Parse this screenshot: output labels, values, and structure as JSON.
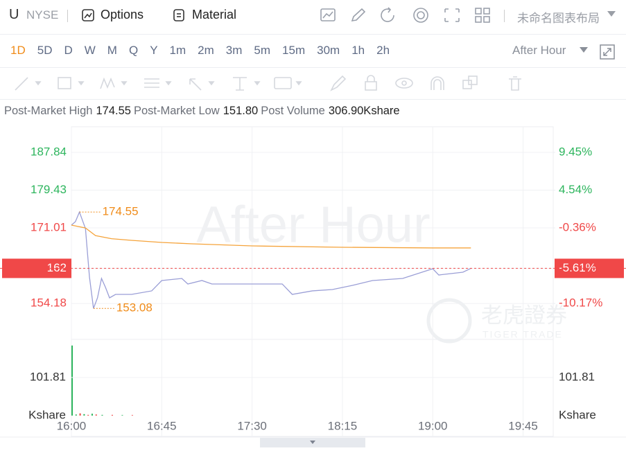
{
  "toolbar": {
    "symbol": "U",
    "exchange": "NYSE",
    "options": "Options",
    "material": "Material",
    "layout": "未命名图表布局"
  },
  "periods": [
    "1D",
    "5D",
    "D",
    "W",
    "M",
    "Q",
    "Y",
    "1m",
    "2m",
    "3m",
    "5m",
    "15m",
    "30m",
    "1h",
    "2h"
  ],
  "session": "After Hour",
  "stats": [
    {
      "label": "Post-Market High",
      "value": "174.55"
    },
    {
      "label": "Post-Market Low",
      "value": "151.80"
    },
    {
      "label": "Post Volume",
      "value": "306.90Kshare"
    }
  ],
  "watermark": "After Hour",
  "logo": {
    "cn": "老虎證券",
    "en": "TIGER TRADE"
  },
  "chart_data": [
    {
      "type": "line",
      "xlim": [
        "16:00",
        "20:00"
      ],
      "xticks": [
        "16:00",
        "16:45",
        "17:30",
        "18:15",
        "19:00",
        "19:45"
      ],
      "ylim": [
        146.17,
        193.55
      ],
      "yticks": [
        187.84,
        179.43,
        171.01,
        162.0,
        154.18
      ],
      "y2lim": [
        -14.83,
        12.77
      ],
      "y2ticks": [
        {
          "value": 9.45,
          "label": "9.45%"
        },
        {
          "value": 4.54,
          "label": "4.54%"
        },
        {
          "value": -0.36,
          "label": "-0.36%"
        },
        {
          "value": -5.61,
          "label": "-5.61%"
        },
        {
          "value": -10.17,
          "label": "-10.17%"
        }
      ],
      "grid": true,
      "up_color": "#2db55d",
      "down_color": "#f04848",
      "last_price": 162.0,
      "last_price_color": "#f04848",
      "series": [
        {
          "color": "#9a9ed6",
          "x": [
            "16:00",
            "16:02",
            "16:04",
            "16:07",
            "16:09",
            "16:11",
            "16:13",
            "16:15",
            "16:17",
            "16:19",
            "16:22",
            "16:30",
            "16:40",
            "16:45",
            "16:55",
            "16:58",
            "17:05",
            "17:10",
            "17:30",
            "17:45",
            "17:50",
            "18:00",
            "18:10",
            "18:20",
            "18:30",
            "18:45",
            "19:00",
            "19:03",
            "19:15",
            "19:19"
          ],
          "values": [
            171.64,
            172.41,
            174.55,
            170.87,
            160.06,
            153.08,
            155.43,
            159.75,
            157.75,
            155.43,
            156.2,
            156.2,
            156.98,
            159.29,
            159.75,
            158.52,
            159.29,
            158.52,
            158.52,
            158.52,
            156.2,
            156.98,
            157.28,
            158.21,
            159.29,
            159.75,
            161.91,
            160.52,
            161.14,
            162.0
          ]
        },
        {
          "color": "#f5a33a",
          "x": [
            "16:00",
            "16:07",
            "16:12",
            "16:20",
            "16:30",
            "16:45",
            "17:00",
            "17:30",
            "18:15",
            "19:00",
            "19:19"
          ],
          "values": [
            171.64,
            171.0,
            169.3,
            168.6,
            168.24,
            167.78,
            167.47,
            167.0,
            166.7,
            166.55,
            166.55
          ]
        }
      ],
      "annotations": [
        {
          "x": "16:04",
          "value": 174.55,
          "color": "#f08c1a"
        },
        {
          "x": "16:11",
          "value": 153.08,
          "color": "#f08c1a"
        }
      ]
    },
    {
      "type": "bar",
      "ylim": [
        0,
        203.62
      ],
      "yticks": [
        101.81
      ],
      "unit": "Kshare",
      "x": [
        "16:00",
        "16:02",
        "16:04",
        "16:06",
        "16:08",
        "16:10",
        "16:12",
        "16:15",
        "16:20",
        "16:25",
        "16:30"
      ],
      "values": [
        187.3,
        3,
        6,
        4,
        2,
        5,
        3,
        2,
        2,
        1.5,
        1.5
      ],
      "colors": [
        "#2db55d",
        "#2db55d",
        "#f04848",
        "#2db55d",
        "#f04848",
        "#2db55d",
        "#f04848",
        "#2db55d",
        "#f04848",
        "#2db55d",
        "#f04848"
      ]
    }
  ]
}
